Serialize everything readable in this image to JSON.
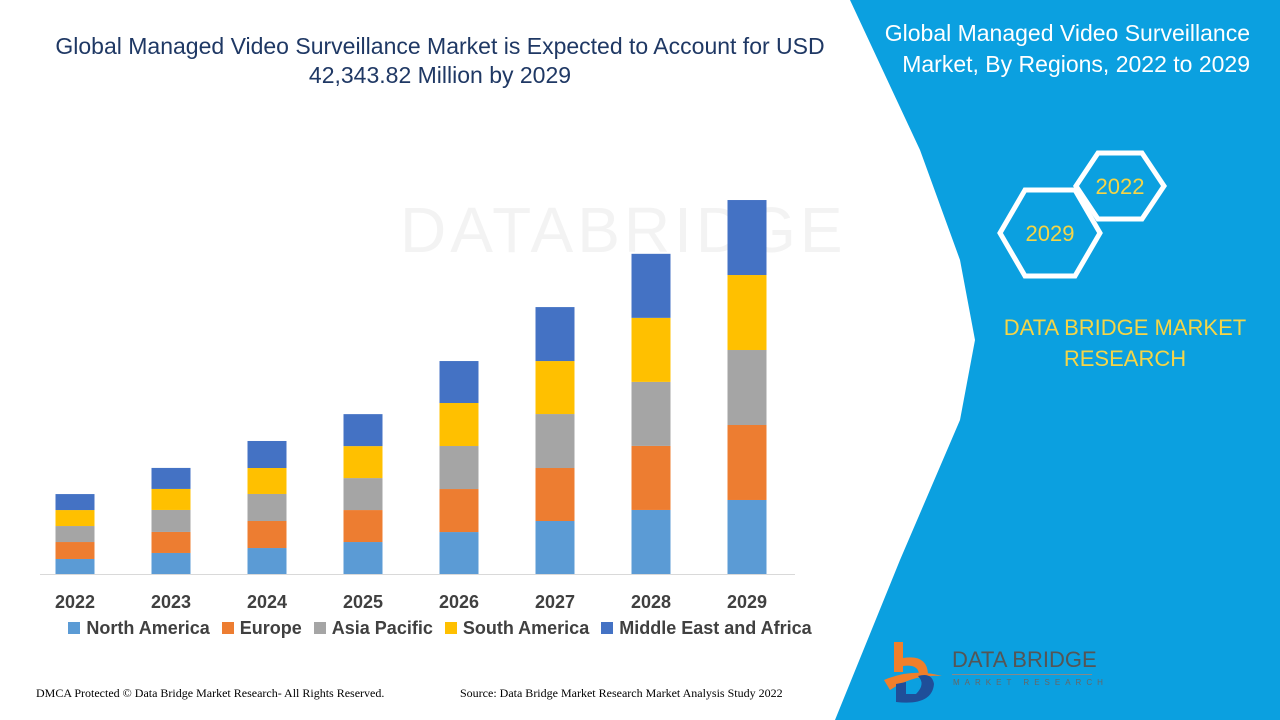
{
  "title": "Global Managed Video Surveillance Market is Expected to Account for USD 42,343.82 Million by 2029",
  "panel": {
    "title": "Global Managed Video Surveillance Market, By Regions, 2022 to 2029",
    "hex_labels": [
      "2022",
      "2029"
    ],
    "brand": "DATA BRIDGE MARKET RESEARCH",
    "logo_text": "DATA BRIDGE",
    "logo_sub": "MARKET RESEARCH"
  },
  "watermark": "DATABRIDGE",
  "footer": {
    "left": "DMCA Protected © Data Bridge Market Research- All Rights Reserved.",
    "right": "Source: Data Bridge Market Research Market Analysis Study 2022"
  },
  "colors": {
    "panel": "#0ba0e0",
    "accent_yellow": "#f5d547",
    "title": "#1f3864"
  },
  "chart_data": {
    "type": "bar",
    "stacked": true,
    "title": "",
    "xlabel": "",
    "ylabel": "",
    "grid": false,
    "legend_position": "bottom",
    "categories": [
      "2022",
      "2023",
      "2024",
      "2025",
      "2026",
      "2027",
      "2028",
      "2029"
    ],
    "series": [
      {
        "name": "North America",
        "color": "#5b9bd5",
        "values": [
          1700,
          2380,
          2940,
          3620,
          4750,
          6000,
          7250,
          8380
        ]
      },
      {
        "name": "Europe",
        "color": "#ed7d31",
        "values": [
          1920,
          2380,
          3060,
          3620,
          4870,
          6000,
          7250,
          8490
        ]
      },
      {
        "name": "Asia Pacific",
        "color": "#a5a5a5",
        "values": [
          1810,
          2490,
          3060,
          3620,
          4870,
          6110,
          7250,
          8490
        ]
      },
      {
        "name": "South America",
        "color": "#ffc000",
        "values": [
          1810,
          2380,
          2940,
          3620,
          4870,
          6000,
          7250,
          8490
        ]
      },
      {
        "name": "Middle East and Africa",
        "color": "#4472c4",
        "values": [
          1810,
          2380,
          3060,
          3620,
          4750,
          6110,
          7250,
          8490
        ]
      }
    ],
    "ylim": [
      0,
      42343.82
    ]
  }
}
